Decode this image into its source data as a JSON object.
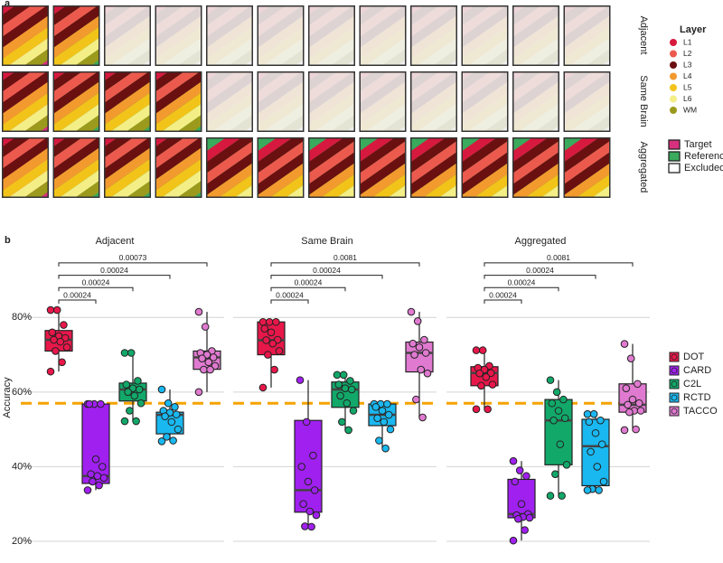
{
  "figure_a": {
    "panel_label": "a",
    "row_labels": [
      "Adjacent",
      "Same Brain",
      "Aggregated"
    ],
    "layer_legend": {
      "title": "Layer",
      "items": [
        {
          "name": "L1",
          "color": "#d7193f"
        },
        {
          "name": "L2",
          "color": "#ec5a4e"
        },
        {
          "name": "L3",
          "color": "#6a1010"
        },
        {
          "name": "L4",
          "color": "#f29a2e"
        },
        {
          "name": "L5",
          "color": "#f2c419"
        },
        {
          "name": "L6",
          "color": "#f3ef86"
        },
        {
          "name": "WM",
          "color": "#9c9a1c"
        }
      ]
    },
    "role_legend": [
      {
        "name": "Target",
        "color": "#d8307f"
      },
      {
        "name": "Reference",
        "color": "#3aaa5c"
      },
      {
        "name": "Excluded",
        "color": "#ffffff"
      }
    ]
  },
  "chart_data": {
    "type": "box",
    "panel_label": "b",
    "ylabel": "Accuracy",
    "categories": [
      "DOT",
      "CARD",
      "C2L",
      "RCTD",
      "TACCO"
    ],
    "colors": [
      "#e8174a",
      "#a020f0",
      "#12a86a",
      "#1ab8f0",
      "#e07ad0"
    ],
    "ylim": [
      19,
      83
    ],
    "yticks": [
      {
        "value": 20,
        "label": "20%"
      },
      {
        "value": 40,
        "label": "40%"
      },
      {
        "value": 60,
        "label": "60%"
      },
      {
        "value": 80,
        "label": "80%"
      }
    ],
    "reference_line": {
      "value": 57,
      "color": "#f5a300"
    },
    "grid": true,
    "facets": [
      {
        "title": "Adjacent",
        "boxes": [
          {
            "min": 65.5,
            "q1": 71,
            "median": 74,
            "q3": 76.5,
            "max": 82,
            "points": [
              82,
              82,
              78,
              76,
              75,
              74.5,
              74,
              73.5,
              72,
              71,
              68,
              65.5
            ]
          },
          {
            "min": 33.7,
            "q1": 35.5,
            "median": 37.5,
            "q3": 56.8,
            "max": 56.8,
            "points": [
              56.8,
              56.8,
              56.8,
              56.8,
              42,
              40,
              38,
              37.5,
              37,
              36,
              35,
              33.7
            ]
          },
          {
            "min": 52.2,
            "q1": 57.6,
            "median": 60.7,
            "q3": 62.4,
            "max": 70.5,
            "points": [
              70.5,
              70.5,
              63,
              62,
              61,
              60.7,
              60,
              59,
              57,
              55,
              52.2,
              52.2
            ]
          },
          {
            "min": 46.8,
            "q1": 48.8,
            "median": 53.9,
            "q3": 54.6,
            "max": 60.7,
            "points": [
              60.7,
              57,
              56,
              55,
              54.5,
              54,
              53.5,
              52,
              50,
              48,
              47,
              46.8
            ]
          },
          {
            "min": 60,
            "q1": 66.1,
            "median": 69.3,
            "q3": 71,
            "max": 81.5,
            "points": [
              81.5,
              77.5,
              71,
              70.5,
              70,
              69.3,
              69,
              68,
              67,
              66,
              66,
              60
            ]
          }
        ],
        "p_values": [
          0.00024,
          0.00024,
          0.00024,
          0.00073
        ]
      },
      {
        "title": "Same Brain",
        "boxes": [
          {
            "min": 61.2,
            "q1": 70,
            "median": 73.9,
            "q3": 78.8,
            "max": 78.8,
            "points": [
              78.8,
              78.8,
              78.8,
              77,
              76,
              74,
              73.9,
              73,
              71,
              70,
              66,
              61.2
            ]
          },
          {
            "min": 23.9,
            "q1": 27.8,
            "median": 33.7,
            "q3": 52.4,
            "max": 63.2,
            "points": [
              63.2,
              52,
              43,
              40,
              36,
              33.7,
              30,
              28,
              27,
              24,
              23.9
            ]
          },
          {
            "min": 49.8,
            "q1": 55.9,
            "median": 60.7,
            "q3": 62.7,
            "max": 64.6,
            "points": [
              64.6,
              64.6,
              63,
              62,
              61,
              60.7,
              59,
              57,
              55,
              52,
              49.8
            ]
          },
          {
            "min": 44.9,
            "q1": 51,
            "median": 53.9,
            "q3": 56.8,
            "max": 56.8,
            "points": [
              56.8,
              56.8,
              56.8,
              56,
              55,
              53.9,
              53,
              52,
              50,
              47,
              44.9
            ]
          },
          {
            "min": 53.2,
            "q1": 65.4,
            "median": 70.5,
            "q3": 73.4,
            "max": 81.5,
            "points": [
              81.5,
              79,
              74,
              73,
              72,
              70.5,
              70,
              66,
              65,
              58,
              53.2
            ]
          }
        ],
        "p_values": [
          0.00024,
          0.00024,
          0.00024,
          0.0081
        ]
      },
      {
        "title": "Aggregated",
        "boxes": [
          {
            "min": 55.4,
            "q1": 61.7,
            "median": 65.1,
            "q3": 66.8,
            "max": 71.2,
            "points": [
              71.2,
              71.2,
              67,
              66.5,
              66,
              65.1,
              65,
              64,
              62,
              61.7,
              55.4,
              55.4
            ]
          },
          {
            "min": 20.2,
            "q1": 26.3,
            "median": 27.3,
            "q3": 36.6,
            "max": 41.5,
            "points": [
              41.5,
              39,
              37.5,
              36,
              30,
              27.3,
              27,
              26.5,
              26.3,
              26,
              23,
              20.2
            ]
          },
          {
            "min": 32.2,
            "q1": 40.5,
            "median": 52.4,
            "q3": 58,
            "max": 63.2,
            "points": [
              63.2,
              60,
              58,
              57,
              55,
              53,
              52.4,
              46,
              40.5,
              38,
              32.2,
              32.2
            ]
          },
          {
            "min": 33.7,
            "q1": 34.9,
            "median": 45.5,
            "q3": 52.7,
            "max": 54.1,
            "points": [
              54.1,
              54.1,
              52.4,
              52,
              49,
              46,
              44,
              40,
              36,
              34,
              33.7,
              33.7
            ]
          },
          {
            "min": 49.8,
            "q1": 54.6,
            "median": 56.6,
            "q3": 62.2,
            "max": 72.9,
            "points": [
              72.9,
              69,
              62.2,
              61,
              58,
              57,
              56.6,
              55,
              55,
              54.6,
              50,
              49.8
            ]
          }
        ],
        "p_values": [
          0.00024,
          0.00024,
          0.00024,
          0.0081
        ]
      }
    ]
  }
}
